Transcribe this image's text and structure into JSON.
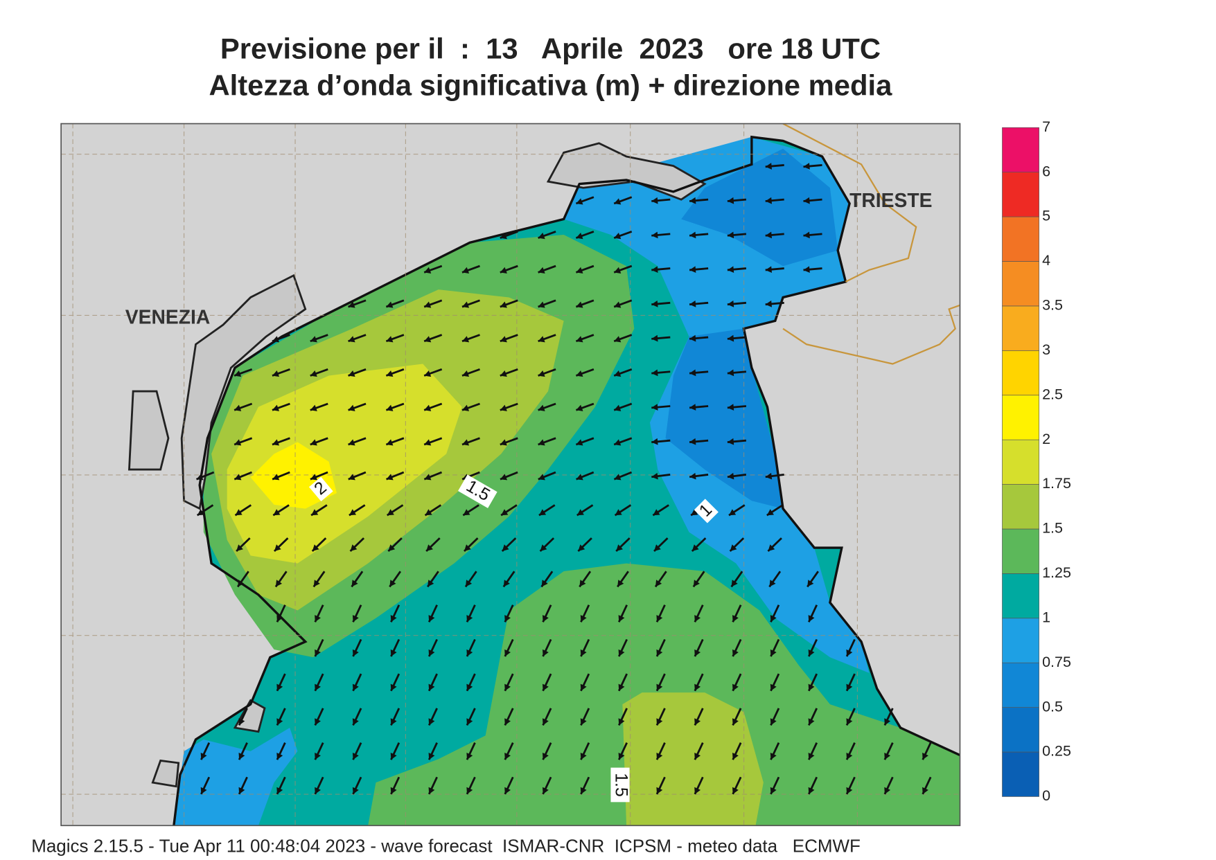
{
  "title": {
    "line1": "Previsione per il  :  13   Aprile  2023   ore 18 UTC",
    "line2": "Altezza d’onda significativa (m) + direzione media"
  },
  "labels": {
    "venezia": "VENEZIA",
    "trieste": "TRIESTE"
  },
  "contour_labels": [
    "2",
    "1.5",
    "1",
    "1.5"
  ],
  "legend": {
    "levels": [
      0,
      0.25,
      0.5,
      0.75,
      1,
      1.25,
      1.5,
      1.75,
      2,
      2.5,
      3,
      3.5,
      4,
      5,
      6,
      7
    ],
    "colors": [
      "#0a5fb4",
      "#0b72c5",
      "#1187d6",
      "#1ea0e4",
      "#00aaa0",
      "#5cb85a",
      "#a6c83c",
      "#d6df2c",
      "#fff200",
      "#ffd400",
      "#f9ac1e",
      "#f58d22",
      "#f27324",
      "#ee2a24",
      "#ec1067"
    ]
  },
  "footer": "Magics 2.15.5 - Tue Apr 11 00:48:04 2023 - wave forecast  ISMAR-CNR  ICPSM - meteo data   ECMWF"
}
